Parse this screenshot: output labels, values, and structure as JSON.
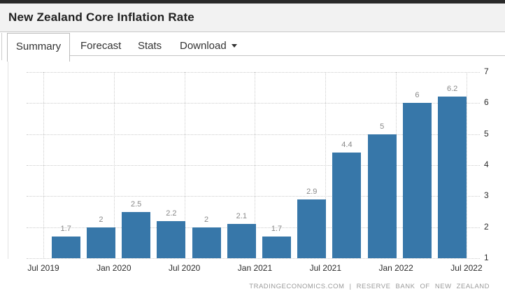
{
  "header": {
    "title": "New Zealand Core Inflation Rate"
  },
  "tabs": {
    "items": [
      {
        "label": "Summary",
        "active": true
      },
      {
        "label": "Forecast",
        "active": false
      },
      {
        "label": "Stats",
        "active": false
      },
      {
        "label": "Download",
        "active": false,
        "has_caret": true
      }
    ]
  },
  "icons": {
    "caret_down": "caret-down-icon"
  },
  "chart_data": {
    "type": "bar",
    "title": "New Zealand Core Inflation Rate",
    "values": [
      1.7,
      2,
      2.5,
      2.2,
      2,
      2.1,
      1.7,
      2.9,
      4.4,
      5,
      6,
      6.2
    ],
    "value_labels": [
      "1.7",
      "2",
      "2.5",
      "2.2",
      "2",
      "2.1",
      "1.7",
      "2.9",
      "4.4",
      "5",
      "6",
      "6.2"
    ],
    "x_tick_labels": [
      "Jul 2019",
      "Jan 2020",
      "Jul 2020",
      "Jan 2021",
      "Jul 2021",
      "Jan 2022",
      "Jul 2022"
    ],
    "y_ticks": [
      "1",
      "2",
      "3",
      "4",
      "5",
      "6",
      "7"
    ],
    "ylim": [
      1,
      7
    ],
    "grid": "dotted",
    "legend": "none",
    "bar_color": "#3777A9",
    "value_label_color": "#888888",
    "axis_label_color": "#2b2b2b",
    "gridline_color": "#cccccc"
  },
  "footer": {
    "source_text": "TRADINGECONOMICS.COM  |  RESERVE  BANK  OF  NEW  ZEALAND"
  },
  "colors": {
    "top_bar": "#2a2a2a",
    "header_bg": "#f2f2f2",
    "border": "#c8c8c8"
  }
}
